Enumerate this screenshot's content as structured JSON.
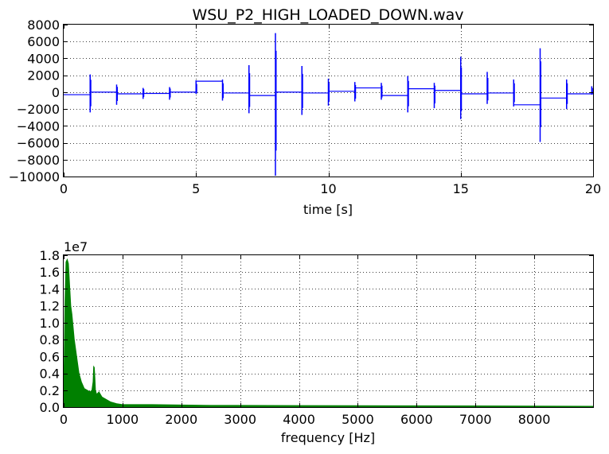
{
  "chart_data": [
    {
      "type": "line",
      "title": "WSU_P2_HIGH_LOADED_DOWN.wav",
      "xlabel": "time [s]",
      "ylabel": "",
      "xlim": [
        0,
        20
      ],
      "ylim": [
        -10000,
        8000
      ],
      "xticks": [
        0,
        5,
        10,
        15,
        20
      ],
      "xtick_labels": [
        "0",
        "5",
        "10",
        "15",
        "20"
      ],
      "yticks": [
        -10000,
        -8000,
        -6000,
        -4000,
        -2000,
        0,
        2000,
        4000,
        6000,
        8000
      ],
      "ytick_labels": [
        "−10000",
        "−8000",
        "−6000",
        "−4000",
        "−2000",
        "0",
        "2000",
        "4000",
        "6000",
        "8000"
      ],
      "grid": true,
      "line_color": "#0000ff",
      "segments": [
        {
          "t0": 0,
          "t1": 1,
          "level": -300
        },
        {
          "t0": 1,
          "t1": 2,
          "level": 0
        },
        {
          "t0": 2,
          "t1": 3,
          "level": -200
        },
        {
          "t0": 3,
          "t1": 4,
          "level": -150
        },
        {
          "t0": 4,
          "t1": 5,
          "level": 0
        },
        {
          "t0": 5,
          "t1": 6,
          "level": 1300
        },
        {
          "t0": 6,
          "t1": 7,
          "level": -100
        },
        {
          "t0": 7,
          "t1": 8,
          "level": -400
        },
        {
          "t0": 8,
          "t1": 9,
          "level": 0
        },
        {
          "t0": 9,
          "t1": 10,
          "level": -100
        },
        {
          "t0": 10,
          "t1": 11,
          "level": 100
        },
        {
          "t0": 11,
          "t1": 12,
          "level": 500
        },
        {
          "t0": 12,
          "t1": 13,
          "level": -400
        },
        {
          "t0": 13,
          "t1": 14,
          "level": 400
        },
        {
          "t0": 14,
          "t1": 15,
          "level": 200
        },
        {
          "t0": 15,
          "t1": 16,
          "level": -200
        },
        {
          "t0": 16,
          "t1": 17,
          "level": -100
        },
        {
          "t0": 17,
          "t1": 18,
          "level": -1500
        },
        {
          "t0": 18,
          "t1": 19,
          "level": -700
        },
        {
          "t0": 19,
          "t1": 20,
          "level": -200
        }
      ],
      "spikes": [
        {
          "t": 1.0,
          "min": -2400,
          "max": 2100
        },
        {
          "t": 2.0,
          "min": -1500,
          "max": 900
        },
        {
          "t": 3.0,
          "min": -800,
          "max": 500
        },
        {
          "t": 4.0,
          "min": -900,
          "max": 600
        },
        {
          "t": 5.0,
          "min": -200,
          "max": 1400
        },
        {
          "t": 6.0,
          "min": -1000,
          "max": 1500
        },
        {
          "t": 7.0,
          "min": -2500,
          "max": 3200
        },
        {
          "t": 8.0,
          "min": -9900,
          "max": 7000
        },
        {
          "t": 9.0,
          "min": -2700,
          "max": 3100
        },
        {
          "t": 10.0,
          "min": -1600,
          "max": 1600
        },
        {
          "t": 11.0,
          "min": -1100,
          "max": 1200
        },
        {
          "t": 12.0,
          "min": -900,
          "max": 1100
        },
        {
          "t": 13.0,
          "min": -2400,
          "max": 1900
        },
        {
          "t": 14.0,
          "min": -1900,
          "max": 1100
        },
        {
          "t": 15.0,
          "min": -3200,
          "max": 4200
        },
        {
          "t": 16.0,
          "min": -1400,
          "max": 2400
        },
        {
          "t": 17.0,
          "min": -1700,
          "max": 1500
        },
        {
          "t": 18.0,
          "min": -5900,
          "max": 5200
        },
        {
          "t": 19.0,
          "min": -2000,
          "max": 1500
        },
        {
          "t": 19.95,
          "min": -300,
          "max": 700
        }
      ]
    },
    {
      "type": "area",
      "title": "",
      "xlabel": "frequency [Hz]",
      "ylabel": "",
      "y_multiplier": "1e7",
      "xlim": [
        0,
        9000
      ],
      "ylim": [
        0,
        1.8
      ],
      "xticks": [
        0,
        1000,
        2000,
        3000,
        4000,
        5000,
        6000,
        7000,
        8000
      ],
      "xtick_labels": [
        "0",
        "1000",
        "2000",
        "3000",
        "4000",
        "5000",
        "6000",
        "7000",
        "8000"
      ],
      "yticks": [
        0,
        0.2,
        0.4,
        0.6,
        0.8,
        1.0,
        1.2,
        1.4,
        1.6,
        1.8
      ],
      "ytick_labels": [
        "0.0",
        "0.2",
        "0.4",
        "0.6",
        "0.8",
        "1.0",
        "1.2",
        "1.4",
        "1.6",
        "1.8"
      ],
      "grid": true,
      "fill_color": "#008000",
      "x": [
        0,
        20,
        40,
        60,
        80,
        100,
        120,
        140,
        160,
        180,
        200,
        230,
        260,
        300,
        350,
        400,
        450,
        480,
        500,
        510,
        520,
        530,
        540,
        560,
        600,
        650,
        700,
        800,
        900,
        1000,
        1200,
        1500,
        2000,
        2500,
        3000,
        4000,
        5000,
        6000,
        7000,
        8000,
        9000
      ],
      "y": [
        0.1,
        1.2,
        1.72,
        1.75,
        1.7,
        1.45,
        1.2,
        1.1,
        0.95,
        0.8,
        0.7,
        0.55,
        0.4,
        0.3,
        0.22,
        0.2,
        0.18,
        0.2,
        0.3,
        0.48,
        0.47,
        0.35,
        0.2,
        0.15,
        0.18,
        0.12,
        0.1,
        0.06,
        0.04,
        0.03,
        0.03,
        0.03,
        0.025,
        0.02,
        0.02,
        0.018,
        0.016,
        0.015,
        0.014,
        0.012,
        0.01
      ]
    }
  ]
}
